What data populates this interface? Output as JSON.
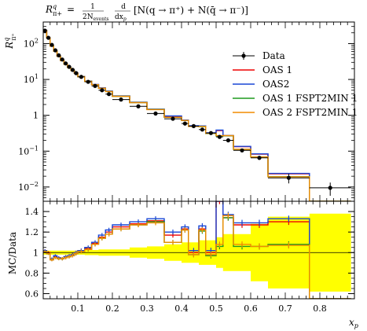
{
  "chart_data": {
    "type": "line",
    "title": "R^q_{π+} = 1/(2N_events) dσ/dx_p [N(q → π+) + N(q̄ → π−)]",
    "title_parts": {
      "lhs": "R",
      "lhs_sup": "q",
      "lhs_sub": "π+",
      "frac_num": "1",
      "frac_den": "2N",
      "frac_den_sub": "events",
      "deriv_num": "d",
      "deriv_den": "dx",
      "deriv_den_sub": "p",
      "bracket": "[N(q → π⁺) + N(q̄ → π⁻)]"
    },
    "ylabel_main": "R",
    "ylabel_main_sup": "q",
    "ylabel_main_sub": "π⁺",
    "ylabel_ratio": "MC/Data",
    "xlabel": "x",
    "xlabel_sub": "p",
    "x_range": [
      0.0,
      0.9
    ],
    "y_main_range": [
      0.004,
      400
    ],
    "y_main_scale": "log",
    "y_ratio_range": [
      0.55,
      1.5
    ],
    "x_ticks": [
      "0.1",
      "0.2",
      "0.3",
      "0.4",
      "0.5",
      "0.6",
      "0.7",
      "0.8"
    ],
    "x_tick_values": [
      0.1,
      0.2,
      0.3,
      0.4,
      0.5,
      0.6,
      0.7,
      0.8
    ],
    "y_main_ticks": [
      {
        "value": 0.01,
        "mantissa": "10",
        "exponent": "−2"
      },
      {
        "value": 0.1,
        "mantissa": "10",
        "exponent": "−1"
      },
      {
        "value": 1,
        "mantissa": "1",
        "exponent": ""
      },
      {
        "value": 10,
        "mantissa": "10",
        "exponent": "1"
      },
      {
        "value": 100,
        "mantissa": "10",
        "exponent": "2"
      }
    ],
    "y_ratio_ticks": [
      "0.6",
      "0.8",
      "1",
      "1.2",
      "1.4"
    ],
    "y_ratio_tick_values": [
      0.6,
      0.8,
      1.0,
      1.2,
      1.4
    ],
    "legend_position": "right",
    "bin_edges": [
      0.0,
      0.01,
      0.02,
      0.03,
      0.04,
      0.05,
      0.06,
      0.07,
      0.08,
      0.09,
      0.1,
      0.12,
      0.14,
      0.16,
      0.18,
      0.2,
      0.25,
      0.3,
      0.35,
      0.4,
      0.42,
      0.45,
      0.47,
      0.5,
      0.52,
      0.55,
      0.6,
      0.65,
      0.77,
      0.89
    ],
    "data": {
      "name": "Data",
      "color": "#000000",
      "x": [
        0.005,
        0.015,
        0.025,
        0.035,
        0.045,
        0.055,
        0.065,
        0.075,
        0.085,
        0.095,
        0.11,
        0.13,
        0.15,
        0.17,
        0.19,
        0.225,
        0.275,
        0.325,
        0.375,
        0.41,
        0.435,
        0.46,
        0.485,
        0.51,
        0.535,
        0.575,
        0.625,
        0.71,
        0.83
      ],
      "y": [
        230,
        145,
        92,
        65,
        47,
        36,
        28,
        22.5,
        18.5,
        15,
        11.8,
        8.6,
        6.6,
        5.0,
        3.9,
        2.75,
        1.78,
        1.12,
        0.8,
        0.59,
        0.5,
        0.4,
        0.32,
        0.25,
        0.2,
        0.105,
        0.065,
        0.018,
        0.0095
      ],
      "yerr_frac": [
        0.05,
        0.04,
        0.03,
        0.03,
        0.03,
        0.03,
        0.03,
        0.03,
        0.03,
        0.03,
        0.03,
        0.03,
        0.03,
        0.03,
        0.03,
        0.03,
        0.03,
        0.03,
        0.04,
        0.04,
        0.05,
        0.05,
        0.05,
        0.06,
        0.07,
        0.1,
        0.12,
        0.3,
        0.4
      ]
    },
    "series": [
      {
        "name": "OAS 1",
        "color": "#ee0000",
        "ratio": [
          1.02,
          1.0,
          0.93,
          0.96,
          0.95,
          0.94,
          0.96,
          0.97,
          0.98,
          1.0,
          1.02,
          1.04,
          1.09,
          1.15,
          1.2,
          1.25,
          1.28,
          1.31,
          1.17,
          1.23,
          1.0,
          1.23,
          1.0,
          1.5,
          1.34,
          1.27,
          1.27,
          1.3,
          0.0
        ]
      },
      {
        "name": "OAS2",
        "color": "#1846d6",
        "ratio": [
          1.02,
          0.99,
          0.94,
          0.97,
          0.95,
          0.94,
          0.96,
          0.97,
          0.98,
          1.0,
          1.02,
          1.05,
          1.1,
          1.17,
          1.22,
          1.27,
          1.3,
          1.33,
          1.2,
          1.25,
          1.02,
          1.26,
          1.02,
          1.55,
          1.37,
          1.29,
          1.29,
          1.33,
          0.0
        ]
      },
      {
        "name": "OAS 1 FSPT2MIN 1",
        "color": "#1f9a1f",
        "ratio": [
          1.01,
          0.99,
          0.93,
          0.95,
          0.94,
          0.94,
          0.95,
          0.96,
          0.97,
          0.99,
          1.01,
          1.03,
          1.08,
          1.14,
          1.18,
          1.23,
          1.27,
          1.3,
          1.1,
          1.22,
          0.98,
          1.21,
          0.97,
          1.06,
          1.34,
          1.06,
          1.06,
          1.08,
          0.0
        ]
      },
      {
        "name": "OAS 2 FSPT2MIN 1",
        "color": "#f28c00",
        "ratio": [
          1.01,
          0.99,
          0.93,
          0.95,
          0.94,
          0.94,
          0.95,
          0.96,
          0.97,
          0.99,
          1.01,
          1.03,
          1.08,
          1.14,
          1.18,
          1.23,
          1.27,
          1.29,
          1.1,
          1.22,
          0.98,
          1.22,
          0.98,
          1.08,
          1.36,
          1.08,
          1.06,
          1.07,
          0.0
        ]
      }
    ],
    "band": {
      "color": "#ffff00",
      "halfwidth": [
        0.02,
        0.02,
        0.02,
        0.02,
        0.02,
        0.02,
        0.02,
        0.02,
        0.02,
        0.02,
        0.02,
        0.025,
        0.025,
        0.03,
        0.03,
        0.03,
        0.05,
        0.06,
        0.08,
        0.1,
        0.1,
        0.12,
        0.12,
        0.15,
        0.18,
        0.18,
        0.28,
        0.35,
        0.38
      ]
    }
  }
}
